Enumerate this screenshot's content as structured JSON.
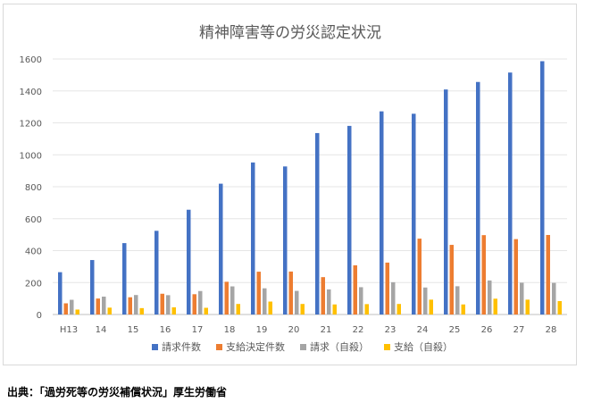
{
  "chart_data": {
    "type": "bar",
    "title": "精神障害等の労災認定状況",
    "categories": [
      "H13",
      "14",
      "15",
      "16",
      "17",
      "18",
      "19",
      "20",
      "21",
      "22",
      "23",
      "24",
      "25",
      "26",
      "27",
      "28"
    ],
    "ylim": [
      0,
      1600
    ],
    "yticks": [
      0,
      200,
      400,
      600,
      800,
      1000,
      1200,
      1400,
      1600
    ],
    "grid": true,
    "legend_position": "bottom",
    "series": [
      {
        "name": "請求件数",
        "color": "#4472c4",
        "values": [
          265,
          341,
          447,
          524,
          656,
          819,
          952,
          927,
          1136,
          1181,
          1272,
          1257,
          1409,
          1456,
          1515,
          1586
        ]
      },
      {
        "name": "支給決定件数",
        "color": "#ed7d31",
        "values": [
          70,
          100,
          108,
          130,
          127,
          205,
          268,
          269,
          234,
          308,
          325,
          475,
          436,
          497,
          472,
          498
        ]
      },
      {
        "name": "請求（自殺）",
        "color": "#a5a5a5",
        "values": [
          92,
          112,
          122,
          121,
          147,
          176,
          164,
          148,
          157,
          171,
          202,
          169,
          177,
          213,
          199,
          198
        ]
      },
      {
        "name": "支給（自殺）",
        "color": "#ffc000",
        "values": [
          31,
          43,
          40,
          45,
          42,
          66,
          81,
          66,
          63,
          65,
          66,
          93,
          63,
          99,
          93,
          84
        ]
      }
    ]
  },
  "source_note": "出典：「過労死等の労災補償状況」厚生労働省"
}
